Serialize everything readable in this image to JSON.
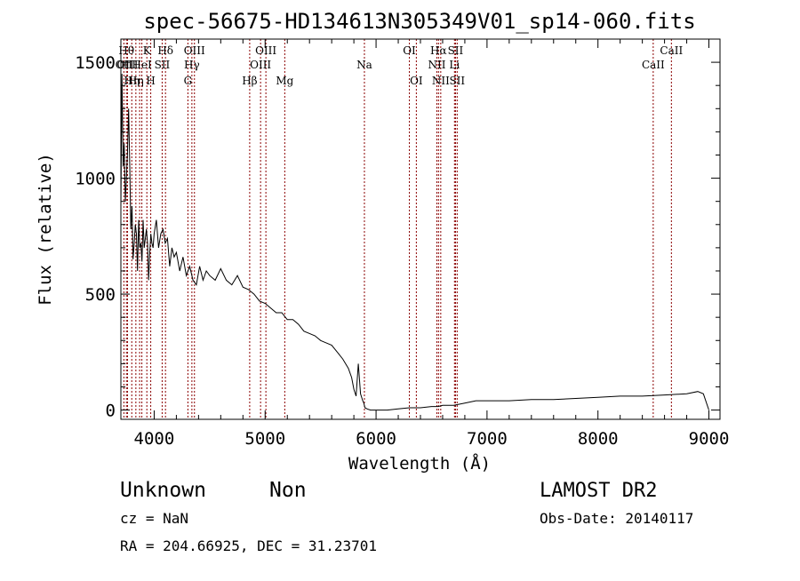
{
  "chart_data": {
    "type": "line",
    "title": "spec-56675-HD134613N305349V01_sp14-060.fits",
    "xlabel": "Wavelength (Å)",
    "ylabel": "Flux (relative)",
    "xlim": [
      3700,
      9100
    ],
    "ylim": [
      -40,
      1600
    ],
    "xticks": [
      4000,
      5000,
      6000,
      7000,
      8000,
      9000
    ],
    "yticks": [
      0,
      500,
      1000,
      1500
    ],
    "grid": false,
    "series": [
      {
        "values_x": [
          3700,
          3710,
          3720,
          3730,
          3740,
          3750,
          3760,
          3770,
          3780,
          3790,
          3800,
          3810,
          3820,
          3830,
          3840,
          3850,
          3860,
          3870,
          3880,
          3890,
          3900,
          3910,
          3920,
          3930,
          3940,
          3950,
          3960,
          3970,
          3980,
          3990,
          4000,
          4020,
          4040,
          4060,
          4080,
          4100,
          4120,
          4140,
          4160,
          4180,
          4200,
          4230,
          4260,
          4290,
          4320,
          4350,
          4380,
          4410,
          4440,
          4470,
          4500,
          4550,
          4600,
          4650,
          4700,
          4750,
          4800,
          4850,
          4900,
          4950,
          5000,
          5050,
          5100,
          5150,
          5200,
          5250,
          5300,
          5350,
          5400,
          5450,
          5500,
          5550,
          5600,
          5650,
          5700,
          5750,
          5780,
          5800,
          5820,
          5840,
          5860,
          5880,
          5890,
          5900,
          5920,
          5950,
          6000,
          6050,
          6100,
          6200,
          6300,
          6400,
          6500,
          6560,
          6600,
          6700,
          6800,
          6900,
          7000,
          7200,
          7400,
          7600,
          7800,
          8000,
          8200,
          8400,
          8600,
          8800,
          8900,
          8950,
          9000
        ],
        "values_y": [
          880,
          1450,
          1050,
          1150,
          900,
          1000,
          1120,
          1300,
          1050,
          780,
          880,
          650,
          720,
          800,
          760,
          600,
          820,
          700,
          720,
          640,
          820,
          700,
          740,
          780,
          720,
          560,
          680,
          760,
          720,
          700,
          760,
          820,
          700,
          760,
          780,
          720,
          740,
          620,
          700,
          660,
          680,
          600,
          660,
          580,
          620,
          560,
          540,
          620,
          560,
          600,
          580,
          560,
          610,
          560,
          540,
          580,
          530,
          520,
          500,
          470,
          460,
          440,
          420,
          420,
          390,
          390,
          370,
          340,
          330,
          320,
          300,
          290,
          280,
          250,
          220,
          180,
          140,
          90,
          60,
          200,
          70,
          40,
          30,
          10,
          5,
          0,
          0,
          0,
          0,
          5,
          10,
          10,
          15,
          15,
          20,
          20,
          30,
          40,
          40,
          40,
          45,
          45,
          50,
          55,
          60,
          60,
          65,
          70,
          80,
          70,
          0
        ]
      }
    ],
    "lines": [
      {
        "w": 3727,
        "label": "OII",
        "row": 2
      },
      {
        "w": 3750,
        "label": "Hθ",
        "row": 1
      },
      {
        "w": 3760,
        "label": "OIII",
        "row": 2
      },
      {
        "w": 3798,
        "label": "Hη",
        "row": 3
      },
      {
        "w": 3835,
        "label": "Hη",
        "row": 3
      },
      {
        "w": 3869,
        "label": "",
        "row": 0
      },
      {
        "w": 3889,
        "label": "HeI",
        "row": 2
      },
      {
        "w": 3934,
        "label": "K",
        "row": 1
      },
      {
        "w": 3969,
        "label": "H",
        "row": 3
      },
      {
        "w": 4072,
        "label": "SII",
        "row": 2
      },
      {
        "w": 4102,
        "label": "Hδ",
        "row": 1
      },
      {
        "w": 4304,
        "label": "G",
        "row": 3
      },
      {
        "w": 4340,
        "label": "Hγ",
        "row": 2
      },
      {
        "w": 4363,
        "label": "OIII",
        "row": 1
      },
      {
        "w": 4861,
        "label": "Hβ",
        "row": 3
      },
      {
        "w": 4959,
        "label": "OIII",
        "row": 2
      },
      {
        "w": 5007,
        "label": "OIII",
        "row": 1
      },
      {
        "w": 5177,
        "label": "Mg",
        "row": 3
      },
      {
        "w": 5895,
        "label": "Na",
        "row": 2
      },
      {
        "w": 6300,
        "label": "OI",
        "row": 1
      },
      {
        "w": 6363,
        "label": "OI",
        "row": 3
      },
      {
        "w": 6548,
        "label": "NII",
        "row": 2
      },
      {
        "w": 6563,
        "label": "Hα",
        "row": 1
      },
      {
        "w": 6583,
        "label": "NII",
        "row": 3
      },
      {
        "w": 6707,
        "label": "Li",
        "row": 2
      },
      {
        "w": 6716,
        "label": "SII",
        "row": 1
      },
      {
        "w": 6731,
        "label": "SII",
        "row": 3
      },
      {
        "w": 8498,
        "label": "CaII",
        "row": 2
      },
      {
        "w": 8662,
        "label": "CaII",
        "row": 1
      }
    ]
  },
  "info": {
    "class": "Unknown",
    "subclass": "Non",
    "survey": "LAMOST DR2",
    "cz": "cz = NaN",
    "obs_date": "Obs-Date: 20140117",
    "coords": "RA = 204.66925, DEC =  31.23701"
  }
}
